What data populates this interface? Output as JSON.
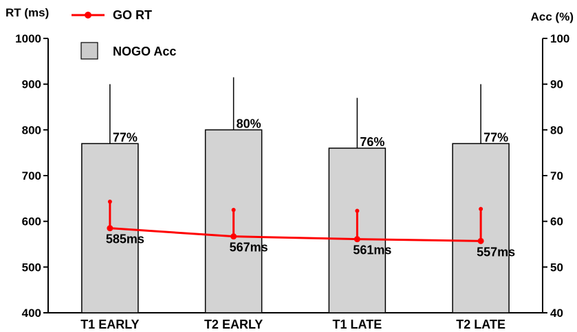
{
  "chart_data": {
    "type": "bar",
    "categories": [
      "T1 EARLY",
      "T2 EARLY",
      "T1 LATE",
      "T2 LATE"
    ],
    "left_axis": {
      "label": "RT (ms)",
      "range": [
        400,
        1000
      ],
      "ticks": [
        "400",
        "500",
        "600",
        "700",
        "800",
        "900",
        "1000"
      ]
    },
    "right_axis": {
      "label": "Acc (%)",
      "range": [
        40,
        100
      ],
      "ticks": [
        "40",
        "50",
        "60",
        "70",
        "80",
        "90",
        "100"
      ]
    },
    "legend": {
      "placement": "top-left",
      "line_entry": "GO RT",
      "bar_entry": "NOGO Acc"
    },
    "series": [
      {
        "name": "NOGO Acc",
        "kind": "bar",
        "axis": "right",
        "values": [
          77,
          80,
          76,
          77
        ],
        "error_upper": [
          90,
          91.5,
          87,
          90
        ],
        "labels": [
          "77%",
          "80%",
          "76%",
          "77%"
        ]
      },
      {
        "name": "GO RT",
        "kind": "line",
        "axis": "left",
        "values": [
          585,
          567,
          561,
          557
        ],
        "error_upper": [
          643,
          625,
          623,
          627
        ],
        "labels": [
          "585ms",
          "567ms",
          "561ms",
          "557ms"
        ]
      }
    ],
    "colors": {
      "bar_fill": "#d3d3d3",
      "line": "#ff0000"
    },
    "grid": false
  }
}
